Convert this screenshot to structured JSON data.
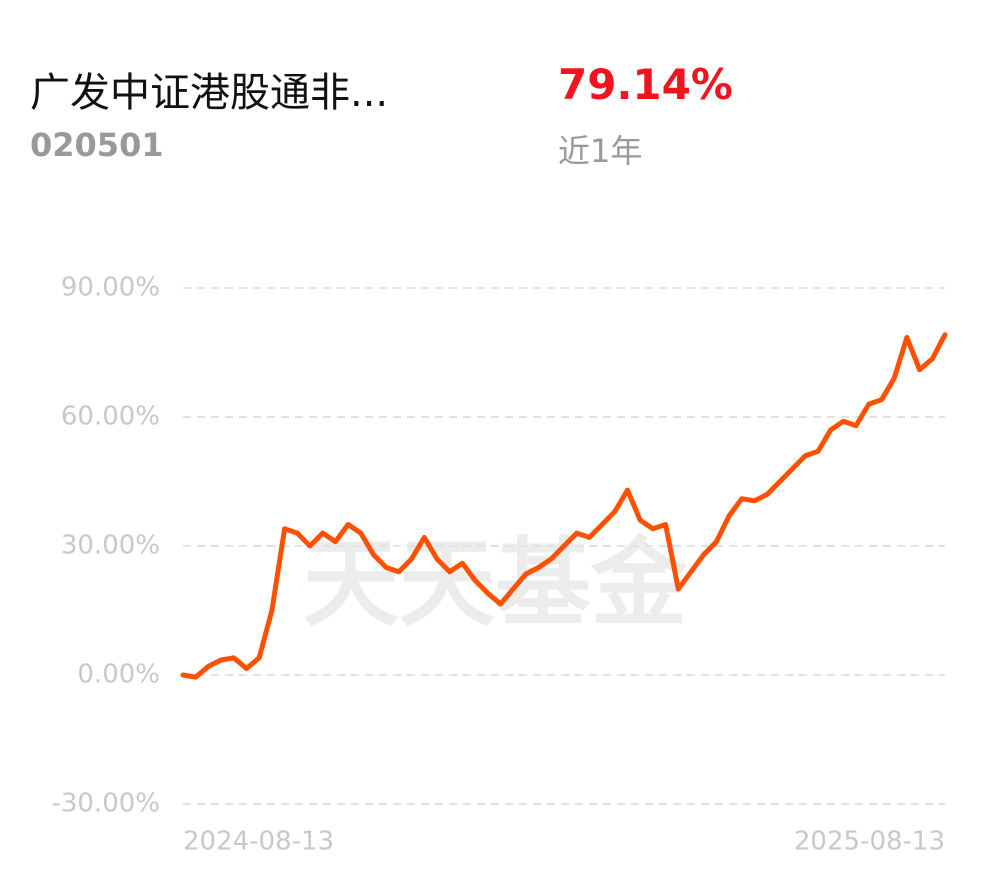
{
  "header": {
    "title": "广发中证港股通非...",
    "code": "020501",
    "return": "79.14%",
    "period": "近1年"
  },
  "chart_data": {
    "type": "line",
    "watermark": "天天基金",
    "categories": [
      "2024-08-13",
      null,
      null,
      null,
      null,
      null,
      null,
      null,
      null,
      null,
      null,
      null,
      null,
      null,
      null,
      null,
      null,
      null,
      null,
      null,
      null,
      null,
      null,
      null,
      null,
      null,
      null,
      null,
      null,
      null,
      null,
      null,
      null,
      null,
      null,
      null,
      null,
      null,
      null,
      null,
      null,
      null,
      null,
      null,
      null,
      null,
      null,
      null,
      null,
      null,
      null,
      null,
      null,
      null,
      null,
      null,
      null,
      null,
      null,
      null,
      "2025-08-13"
    ],
    "series": [
      {
        "color": "#ff5000",
        "values": [
          0,
          -0.5,
          2,
          3.5,
          4,
          1.5,
          4,
          15,
          34,
          33,
          30,
          33,
          31,
          35,
          33,
          28,
          25,
          24,
          27,
          32,
          27,
          24,
          26,
          22,
          19,
          16.5,
          20,
          23.5,
          25,
          27,
          30,
          33,
          32,
          35,
          38,
          43,
          36,
          34,
          35,
          20,
          24,
          28,
          31,
          37,
          41,
          40.5,
          42,
          45,
          48,
          51,
          52,
          57,
          59,
          58,
          63,
          64,
          69,
          78.5,
          71,
          73.5,
          79.14
        ]
      }
    ],
    "ylim": [
      -30,
      90
    ],
    "yticks": [
      {
        "value": -30,
        "label": "-30.00%"
      },
      {
        "value": 0,
        "label": "0.00%"
      },
      {
        "value": 30,
        "label": "30.00%"
      },
      {
        "value": 60,
        "label": "60.00%"
      },
      {
        "value": 90,
        "label": "90.00%"
      }
    ],
    "grid": true
  }
}
